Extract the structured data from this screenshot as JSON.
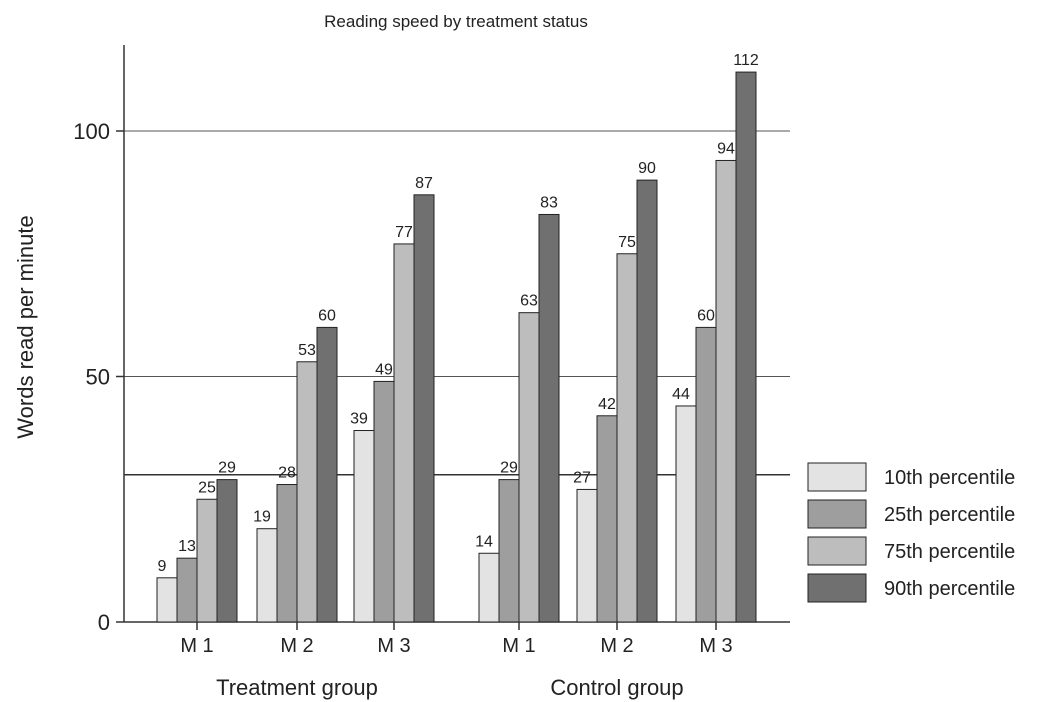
{
  "chart_data": {
    "type": "bar",
    "title": "Reading speed by treatment status",
    "ylabel": "Words read per minute",
    "xlabel": "",
    "ylim": [
      0,
      120
    ],
    "yticks": [
      0,
      50,
      100
    ],
    "reference_line": 30,
    "grid": "horizontal",
    "legend_position": "right",
    "groups": [
      {
        "label": "Treatment group",
        "categories": [
          "M 1",
          "M 2",
          "M 3"
        ]
      },
      {
        "label": "Control group",
        "categories": [
          "M 1",
          "M 2",
          "M 3"
        ]
      }
    ],
    "series": [
      {
        "name": "10th percentile",
        "color": "#e3e3e3",
        "values": [
          9,
          19,
          39,
          14,
          27,
          44
        ]
      },
      {
        "name": "25th percentile",
        "color": "#9e9e9e",
        "values": [
          13,
          28,
          49,
          29,
          42,
          60
        ]
      },
      {
        "name": "75th percentile",
        "color": "#bdbdbd",
        "values": [
          25,
          53,
          77,
          63,
          75,
          94
        ]
      },
      {
        "name": "90th percentile",
        "color": "#707070",
        "values": [
          29,
          60,
          87,
          83,
          90,
          112
        ]
      }
    ]
  }
}
